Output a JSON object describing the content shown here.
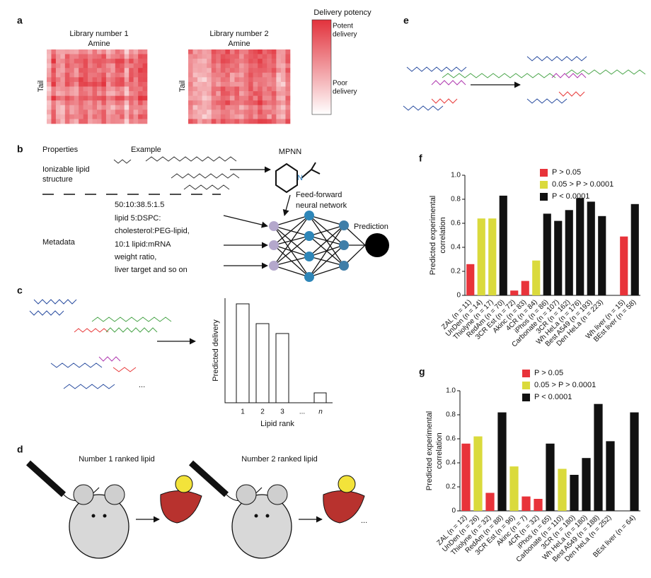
{
  "panels": {
    "a": {
      "label": "a",
      "heatmap_1": {
        "title": "Library number 1",
        "x_label": "Amine",
        "y_label": "Tail"
      },
      "heatmap_2": {
        "title": "Library number 2",
        "x_label": "Amine",
        "y_label": "Tail"
      },
      "colorbar": {
        "title": "Delivery potency",
        "top_label": [
          "Potent",
          "delivery"
        ],
        "bottom_label": [
          "Poor",
          "delivery"
        ]
      }
    },
    "b": {
      "label": "b",
      "headers": [
        "Properties",
        "Example"
      ],
      "lipid_row": [
        "Ionizable lipid",
        "structure"
      ],
      "metadata_row": "Metadata",
      "metadata_text": [
        "50:10:38.5:1.5",
        "lipid 5:DSPC:",
        "cholesterol:PEG-lipid,",
        "10:1 lipid:mRNA",
        "weight ratio,",
        "liver target and so on"
      ],
      "mpnn": "MPNN",
      "mpnn_atom": "N",
      "ffnn": [
        "Feed-forward",
        "neural network"
      ],
      "prediction": "Prediction"
    },
    "c": {
      "label": "c",
      "y_label": "Predicted delivery",
      "x_label": "Lipid rank",
      "ranks": [
        "1",
        "2",
        "3",
        "...",
        "n"
      ],
      "ellipsis": "..."
    },
    "d": {
      "label": "d",
      "steps": [
        "Number 1 ranked lipid",
        "Number 2 ranked lipid"
      ],
      "ellipsis": "..."
    },
    "e": {
      "label": "e"
    }
  },
  "chart_data": [
    {
      "type": "bar",
      "panel_label": "f",
      "ylabel": [
        "Predicted experimental",
        "correlation"
      ],
      "categories": [
        "ZAL (n = 11)",
        "UnDen (n = 14)",
        "Thiolyne (n = 17)",
        "RedAm (n = 70)",
        "3CR Est (n = 72)",
        "Akinc (n = 83)",
        "4CR (n = 84)",
        "iPhos (n = 86)",
        "Carbonate (n = 107)",
        "3CR (n = 162)",
        "Wh HeLa (n = 176)",
        "Best A549 (n = 193)",
        "Den HeLa (n = 223)",
        null,
        "Wh liver (n = 15)",
        "BEst liver (n = 58)"
      ],
      "values": [
        0.26,
        0.64,
        0.64,
        0.83,
        0.04,
        0.12,
        0.29,
        0.68,
        0.62,
        0.71,
        0.81,
        0.78,
        0.66,
        null,
        0.49,
        0.76
      ],
      "colors": [
        "#e8333a",
        "#dada3c",
        "#dada3c",
        "#111111",
        "#e8333a",
        "#e8333a",
        "#dada3c",
        "#111111",
        "#111111",
        "#111111",
        "#111111",
        "#111111",
        "#111111",
        null,
        "#e8333a",
        "#111111"
      ],
      "legend": [
        {
          "label": "P > 0.05",
          "color": "#e8333a"
        },
        {
          "label": "0.05 > P > 0.0001",
          "color": "#dada3c"
        },
        {
          "label": "P < 0.0001",
          "color": "#111111"
        }
      ],
      "ylim": [
        0,
        1.0
      ],
      "yticks": [
        0,
        0.2,
        0.4,
        0.6,
        0.8,
        {
          "value": 1.0,
          "label": "1.0"
        }
      ]
    },
    {
      "type": "bar",
      "panel_label": "g",
      "ylabel": [
        "Predicted experimental",
        "correlation"
      ],
      "categories": [
        "ZAL (n = 12)",
        "UnDen (n = 26)",
        "Thiolyne (n = 32)",
        "RedAm (n = 88)",
        "3CR Est (n = 96)",
        "Akinc (n = 7)",
        "4CR (n = 32)",
        "iPhos (n = 65)",
        "Carbonate (n = 110)",
        "3CR (n = 180)",
        "Wh HeLa (n = 180)",
        "Best A549 (n = 188)",
        "Den HeLa (n = 252)",
        null,
        "BEst liver (n = 64)"
      ],
      "values": [
        0.56,
        0.62,
        0.15,
        0.82,
        0.37,
        0.12,
        0.1,
        0.56,
        0.35,
        0.3,
        0.44,
        0.89,
        0.58,
        null,
        0.82
      ],
      "colors": [
        "#e8333a",
        "#dada3c",
        "#e8333a",
        "#111111",
        "#dada3c",
        "#e8333a",
        "#e8333a",
        "#111111",
        "#dada3c",
        "#111111",
        "#111111",
        "#111111",
        "#111111",
        null,
        "#111111"
      ],
      "legend": [
        {
          "label": "P > 0.05",
          "color": "#e8333a"
        },
        {
          "label": "0.05 > P > 0.0001",
          "color": "#dada3c"
        },
        {
          "label": "P < 0.0001",
          "color": "#111111"
        }
      ],
      "ylim": [
        0,
        1.0
      ],
      "yticks": [
        0,
        0.2,
        0.4,
        0.6,
        0.8,
        {
          "value": 1.0,
          "label": "1.0"
        }
      ]
    }
  ]
}
